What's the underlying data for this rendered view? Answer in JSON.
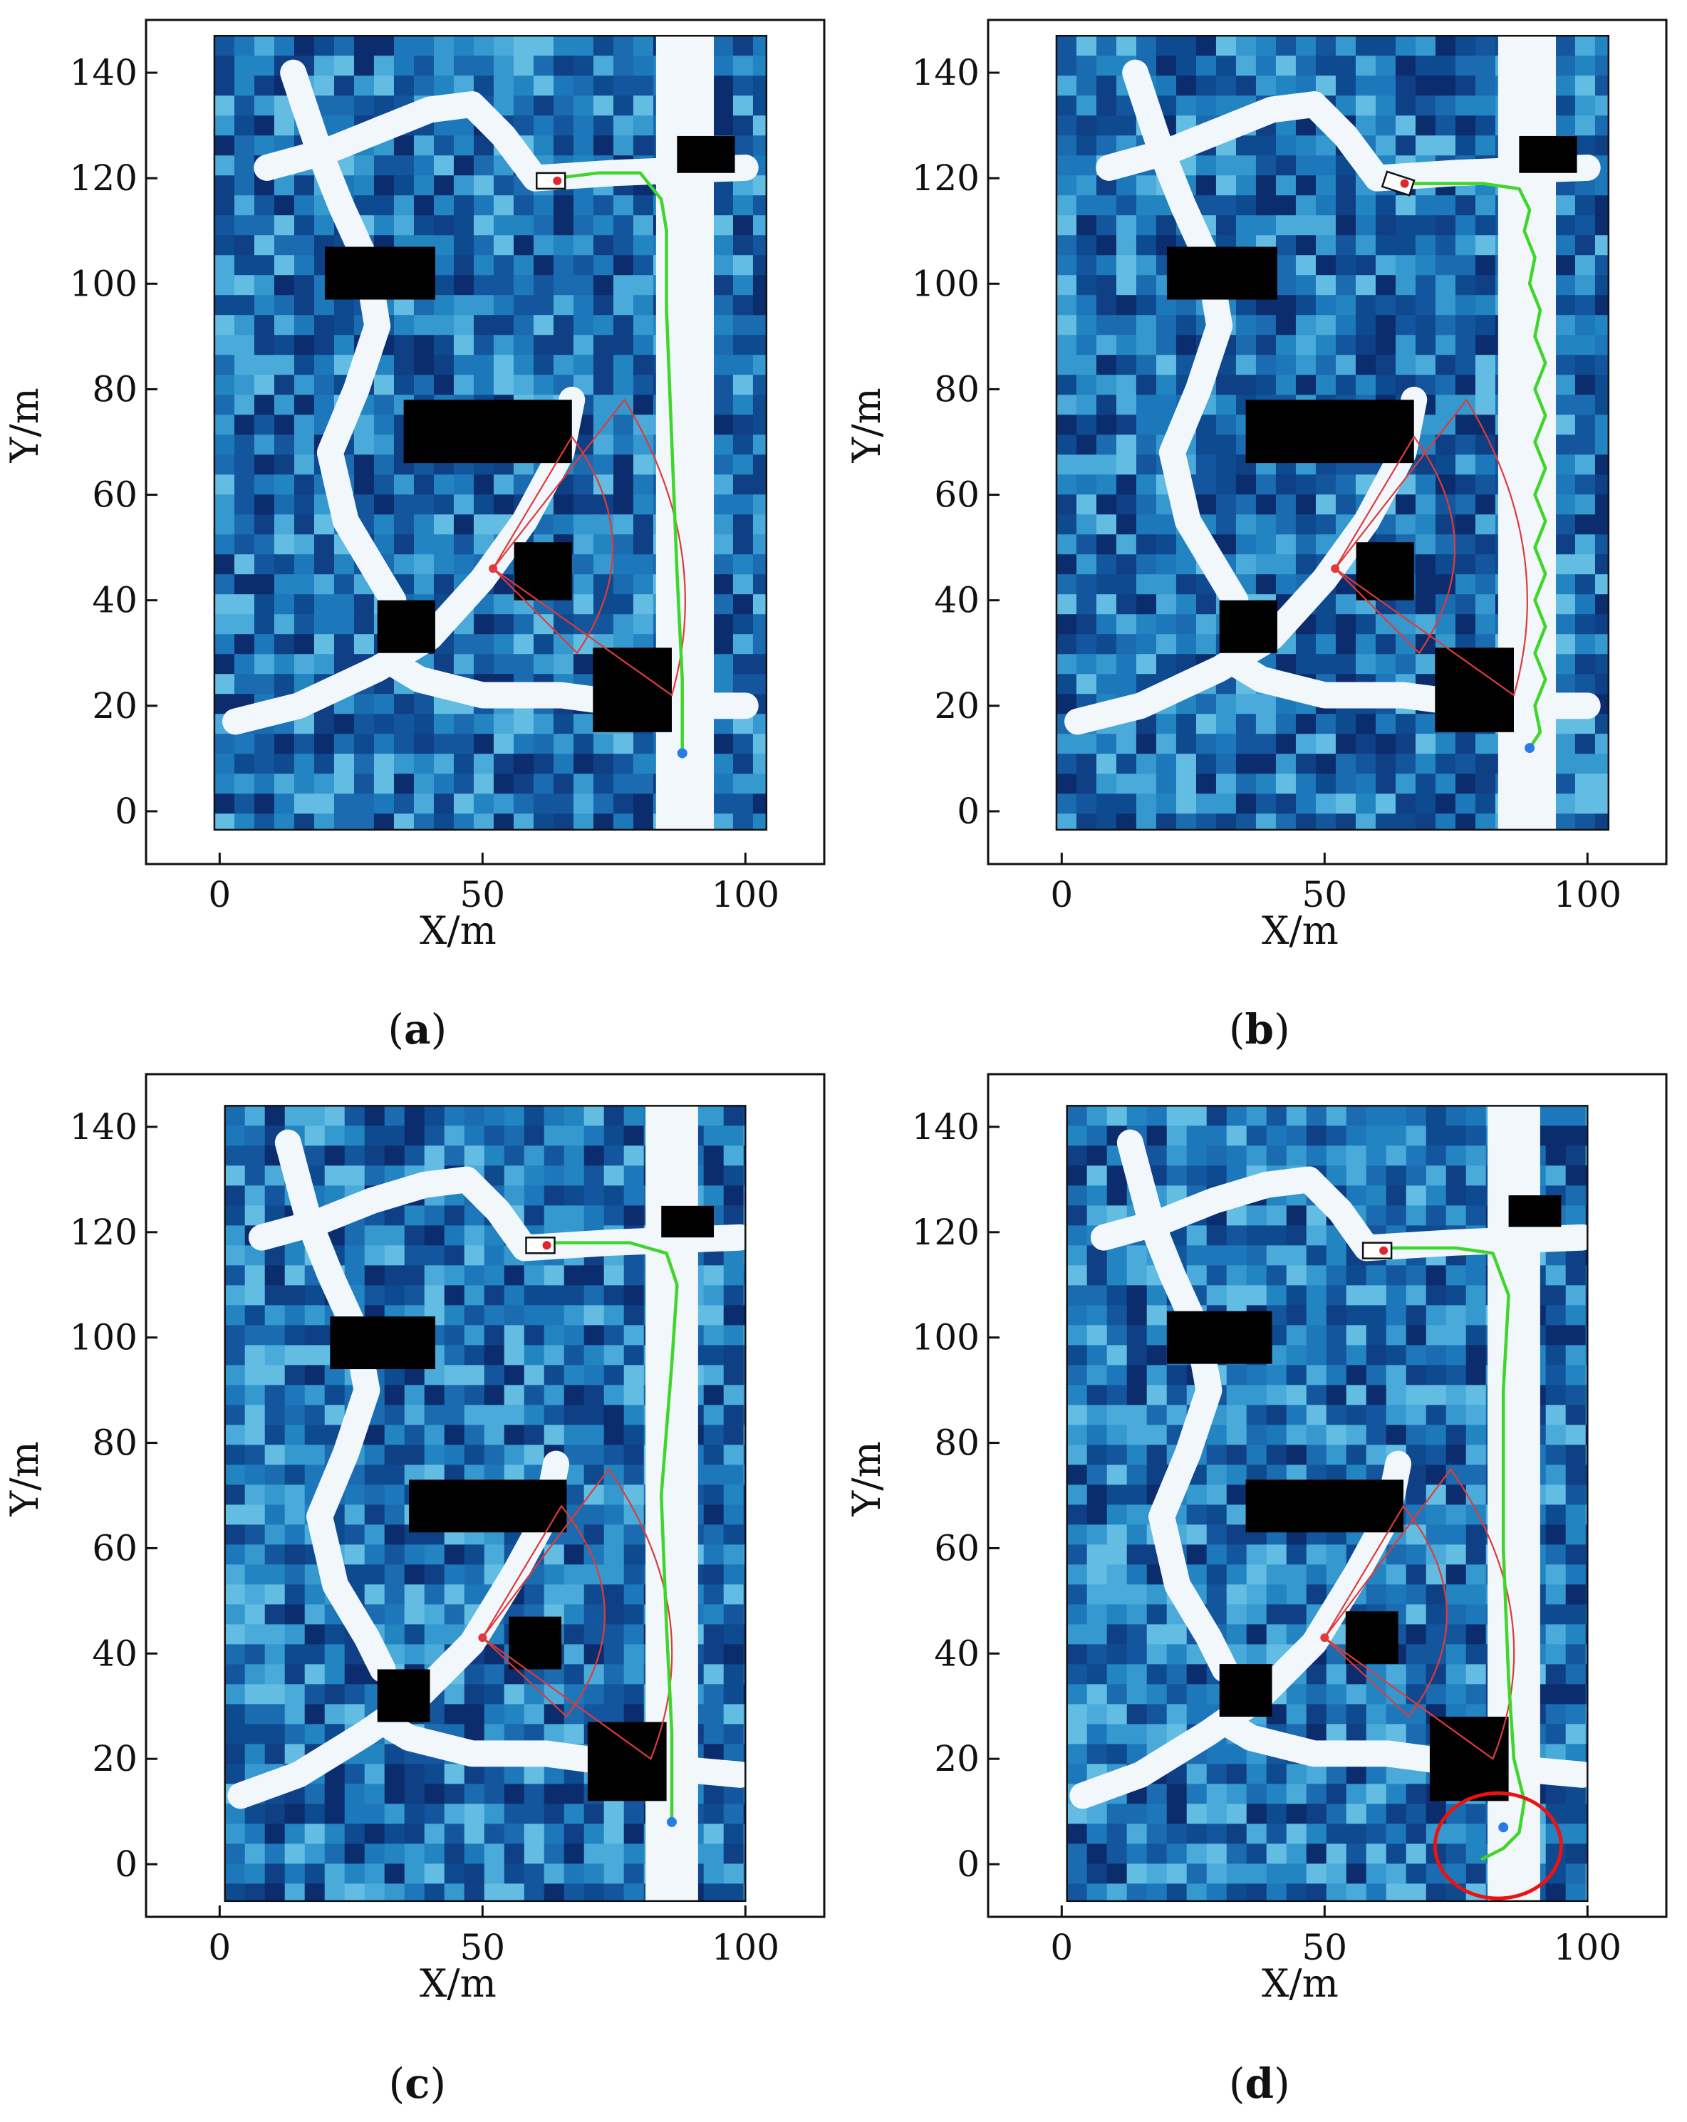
{
  "figure": {
    "panels_order": [
      "a",
      "b",
      "c",
      "d"
    ]
  },
  "chart_data": [
    {
      "id": "a",
      "type": "line",
      "caption_letter": "a",
      "caption_paren_open": "(",
      "caption_paren_close": ")",
      "xlabel": "X/m",
      "ylabel": "Y/m",
      "xlim": [
        -14,
        115
      ],
      "ylim": [
        -10,
        150
      ],
      "xticks": [
        0,
        50,
        100
      ],
      "yticks": [
        0,
        20,
        40,
        60,
        80,
        100,
        120,
        140
      ],
      "map_extent": {
        "x": [
          -1,
          104
        ],
        "y": [
          -3.5,
          147
        ]
      },
      "roads": [
        [
          [
            3,
            17
          ],
          [
            15,
            20
          ],
          [
            30,
            27
          ],
          [
            40,
            33
          ],
          [
            50,
            44
          ],
          [
            58,
            55
          ],
          [
            65,
            68
          ],
          [
            67,
            78
          ]
        ],
        [
          [
            33,
            28
          ],
          [
            38,
            25
          ],
          [
            50,
            22
          ],
          [
            65,
            22
          ],
          [
            80,
            20
          ],
          [
            100,
            20
          ]
        ],
        [
          [
            33,
            40
          ],
          [
            30,
            45
          ],
          [
            24,
            55
          ],
          [
            21,
            68
          ],
          [
            26,
            80
          ],
          [
            30,
            92
          ],
          [
            28,
            104
          ],
          [
            23,
            115
          ],
          [
            19,
            125
          ],
          [
            14,
            140
          ]
        ],
        [
          [
            9,
            122
          ],
          [
            20,
            125
          ],
          [
            30,
            129
          ],
          [
            40,
            133
          ],
          [
            48,
            134
          ],
          [
            54,
            128
          ],
          [
            60,
            120
          ],
          [
            75,
            121
          ],
          [
            100,
            122
          ]
        ]
      ],
      "white_strip": {
        "x": [
          83,
          94
        ],
        "y": [
          -3.5,
          147
        ]
      },
      "obstacles": [
        {
          "x": [
            20,
            41
          ],
          "y": [
            97,
            107
          ]
        },
        {
          "x": [
            35,
            67
          ],
          "y": [
            66,
            78
          ]
        },
        {
          "x": [
            56,
            67
          ],
          "y": [
            40,
            51
          ]
        },
        {
          "x": [
            30,
            41
          ],
          "y": [
            30,
            40
          ]
        },
        {
          "x": [
            71,
            86
          ],
          "y": [
            15,
            31
          ]
        },
        {
          "x": [
            87,
            98
          ],
          "y": [
            121,
            128
          ]
        }
      ],
      "sensor": {
        "origin": [
          52,
          46
        ],
        "left_end": [
          67,
          71
        ],
        "right_end": [
          68,
          30
        ],
        "outer_tip": [
          77,
          78
        ],
        "outer_bottom": [
          86,
          22
        ],
        "bulge_x": 88
      },
      "path": [
        [
          88,
          11
        ],
        [
          88,
          25
        ],
        [
          87,
          45
        ],
        [
          86,
          70
        ],
        [
          85,
          95
        ],
        [
          85,
          110
        ],
        [
          84,
          116
        ],
        [
          80,
          121
        ],
        [
          72,
          121
        ],
        [
          64,
          120
        ]
      ],
      "start": [
        88,
        11
      ],
      "goal": [
        64,
        120
      ],
      "vehicle": [
        63,
        119.5
      ],
      "highlight": null
    },
    {
      "id": "b",
      "type": "line",
      "caption_letter": "b",
      "caption_paren_open": "(",
      "caption_paren_close": ")",
      "xlabel": "X/m",
      "ylabel": "Y/m",
      "xlim": [
        -14,
        115
      ],
      "ylim": [
        -10,
        150
      ],
      "xticks": [
        0,
        50,
        100
      ],
      "yticks": [
        0,
        20,
        40,
        60,
        80,
        100,
        120,
        140
      ],
      "map_extent": {
        "x": [
          -1,
          104
        ],
        "y": [
          -3.5,
          147
        ]
      },
      "roads": [
        [
          [
            3,
            17
          ],
          [
            15,
            20
          ],
          [
            30,
            27
          ],
          [
            40,
            33
          ],
          [
            50,
            44
          ],
          [
            58,
            55
          ],
          [
            65,
            68
          ],
          [
            67,
            78
          ]
        ],
        [
          [
            33,
            28
          ],
          [
            38,
            25
          ],
          [
            50,
            22
          ],
          [
            65,
            22
          ],
          [
            80,
            20
          ],
          [
            100,
            20
          ]
        ],
        [
          [
            33,
            40
          ],
          [
            30,
            45
          ],
          [
            24,
            55
          ],
          [
            21,
            68
          ],
          [
            26,
            80
          ],
          [
            30,
            92
          ],
          [
            28,
            104
          ],
          [
            23,
            115
          ],
          [
            19,
            125
          ],
          [
            14,
            140
          ]
        ],
        [
          [
            9,
            122
          ],
          [
            20,
            125
          ],
          [
            30,
            129
          ],
          [
            40,
            133
          ],
          [
            48,
            134
          ],
          [
            54,
            128
          ],
          [
            60,
            120
          ],
          [
            75,
            121
          ],
          [
            100,
            122
          ]
        ]
      ],
      "white_strip": {
        "x": [
          83,
          94
        ],
        "y": [
          -3.5,
          147
        ]
      },
      "obstacles": [
        {
          "x": [
            20,
            41
          ],
          "y": [
            97,
            107
          ]
        },
        {
          "x": [
            35,
            67
          ],
          "y": [
            66,
            78
          ]
        },
        {
          "x": [
            56,
            67
          ],
          "y": [
            40,
            51
          ]
        },
        {
          "x": [
            30,
            41
          ],
          "y": [
            30,
            40
          ]
        },
        {
          "x": [
            71,
            86
          ],
          "y": [
            15,
            31
          ]
        },
        {
          "x": [
            87,
            98
          ],
          "y": [
            121,
            128
          ]
        }
      ],
      "sensor": {
        "origin": [
          52,
          46
        ],
        "left_end": [
          67,
          71
        ],
        "right_end": [
          68,
          30
        ],
        "outer_tip": [
          77,
          78
        ],
        "outer_bottom": [
          86,
          22
        ],
        "bulge_x": 88
      },
      "path": [
        [
          89,
          12
        ],
        [
          91,
          15
        ],
        [
          90,
          20
        ],
        [
          92,
          25
        ],
        [
          90,
          30
        ],
        [
          92,
          35
        ],
        [
          90,
          40
        ],
        [
          92,
          45
        ],
        [
          90,
          50
        ],
        [
          92,
          55
        ],
        [
          90,
          60
        ],
        [
          92,
          65
        ],
        [
          90,
          70
        ],
        [
          92,
          75
        ],
        [
          90,
          80
        ],
        [
          92,
          85
        ],
        [
          90,
          90
        ],
        [
          91,
          95
        ],
        [
          89,
          100
        ],
        [
          90,
          105
        ],
        [
          88,
          110
        ],
        [
          89,
          114
        ],
        [
          87,
          118
        ],
        [
          80,
          119
        ],
        [
          72,
          119
        ],
        [
          66,
          119
        ]
      ],
      "start": [
        89,
        12
      ],
      "goal": [
        66,
        119
      ],
      "vehicle": [
        64,
        119
      ],
      "highlight": null
    },
    {
      "id": "c",
      "type": "line",
      "caption_letter": "c",
      "caption_paren_open": "(",
      "caption_paren_close": ")",
      "xlabel": "X/m",
      "ylabel": "Y/m",
      "xlim": [
        -14,
        115
      ],
      "ylim": [
        -10,
        150
      ],
      "xticks": [
        0,
        50,
        100
      ],
      "yticks": [
        0,
        20,
        40,
        60,
        80,
        100,
        120,
        140
      ],
      "map_extent": {
        "x": [
          1,
          100
        ],
        "y": [
          -7,
          144
        ]
      },
      "roads": [
        [
          [
            4,
            13
          ],
          [
            15,
            17
          ],
          [
            28,
            25
          ],
          [
            38,
            32
          ],
          [
            48,
            42
          ],
          [
            56,
            55
          ],
          [
            62,
            66
          ],
          [
            64,
            76
          ]
        ],
        [
          [
            31,
            27
          ],
          [
            36,
            24
          ],
          [
            48,
            21
          ],
          [
            62,
            21
          ],
          [
            77,
            19
          ],
          [
            99,
            17
          ]
        ],
        [
          [
            31,
            37
          ],
          [
            28,
            43
          ],
          [
            22,
            53
          ],
          [
            19,
            66
          ],
          [
            24,
            78
          ],
          [
            28,
            90
          ],
          [
            26,
            101
          ],
          [
            21,
            112
          ],
          [
            17,
            122
          ],
          [
            13,
            137
          ]
        ],
        [
          [
            8,
            119
          ],
          [
            19,
            122
          ],
          [
            29,
            126
          ],
          [
            39,
            129
          ],
          [
            47,
            130
          ],
          [
            53,
            124
          ],
          [
            58,
            117
          ],
          [
            74,
            118
          ],
          [
            99,
            119
          ]
        ]
      ],
      "white_strip": {
        "x": [
          81,
          91
        ],
        "y": [
          -7,
          144
        ]
      },
      "obstacles": [
        {
          "x": [
            21,
            41
          ],
          "y": [
            94,
            104
          ]
        },
        {
          "x": [
            36,
            66
          ],
          "y": [
            63,
            73
          ]
        },
        {
          "x": [
            55,
            65
          ],
          "y": [
            37,
            47
          ]
        },
        {
          "x": [
            30,
            40
          ],
          "y": [
            27,
            37
          ]
        },
        {
          "x": [
            70,
            85
          ],
          "y": [
            12,
            27
          ]
        },
        {
          "x": [
            84,
            94
          ],
          "y": [
            119,
            125
          ]
        }
      ],
      "sensor": {
        "origin": [
          50,
          43
        ],
        "left_end": [
          65,
          68
        ],
        "right_end": [
          66,
          28
        ],
        "outer_tip": [
          74,
          75
        ],
        "outer_bottom": [
          82,
          20
        ],
        "bulge_x": 87
      },
      "path": [
        [
          86,
          8
        ],
        [
          86,
          25
        ],
        [
          85,
          45
        ],
        [
          84,
          70
        ],
        [
          86,
          95
        ],
        [
          87,
          110
        ],
        [
          85,
          116
        ],
        [
          78,
          118
        ],
        [
          70,
          118
        ],
        [
          63,
          118
        ]
      ],
      "start": [
        86,
        8
      ],
      "goal": [
        63,
        118
      ],
      "vehicle": [
        61,
        117.5
      ],
      "highlight": null
    },
    {
      "id": "d",
      "type": "line",
      "caption_letter": "d",
      "caption_paren_open": "(",
      "caption_paren_close": ")",
      "xlabel": "X/m",
      "ylabel": "Y/m",
      "xlim": [
        -14,
        115
      ],
      "ylim": [
        -10,
        150
      ],
      "xticks": [
        0,
        50,
        100
      ],
      "yticks": [
        0,
        20,
        40,
        60,
        80,
        100,
        120,
        140
      ],
      "map_extent": {
        "x": [
          1,
          100
        ],
        "y": [
          -7,
          144
        ]
      },
      "roads": [
        [
          [
            4,
            13
          ],
          [
            15,
            17
          ],
          [
            28,
            25
          ],
          [
            38,
            32
          ],
          [
            48,
            42
          ],
          [
            56,
            55
          ],
          [
            62,
            66
          ],
          [
            64,
            76
          ]
        ],
        [
          [
            31,
            27
          ],
          [
            36,
            24
          ],
          [
            48,
            21
          ],
          [
            62,
            21
          ],
          [
            77,
            19
          ],
          [
            99,
            17
          ]
        ],
        [
          [
            31,
            37
          ],
          [
            28,
            43
          ],
          [
            22,
            53
          ],
          [
            19,
            66
          ],
          [
            24,
            78
          ],
          [
            28,
            90
          ],
          [
            26,
            101
          ],
          [
            21,
            112
          ],
          [
            17,
            122
          ],
          [
            13,
            137
          ]
        ],
        [
          [
            8,
            119
          ],
          [
            19,
            122
          ],
          [
            29,
            126
          ],
          [
            39,
            129
          ],
          [
            47,
            130
          ],
          [
            53,
            124
          ],
          [
            58,
            117
          ],
          [
            74,
            118
          ],
          [
            99,
            119
          ]
        ]
      ],
      "white_strip": {
        "x": [
          81,
          91
        ],
        "y": [
          -7,
          144
        ]
      },
      "obstacles": [
        {
          "x": [
            20,
            40
          ],
          "y": [
            95,
            105
          ]
        },
        {
          "x": [
            35,
            65
          ],
          "y": [
            63,
            73
          ]
        },
        {
          "x": [
            54,
            64
          ],
          "y": [
            38,
            48
          ]
        },
        {
          "x": [
            30,
            40
          ],
          "y": [
            28,
            38
          ]
        },
        {
          "x": [
            70,
            85
          ],
          "y": [
            12,
            28
          ]
        },
        {
          "x": [
            85,
            95
          ],
          "y": [
            121,
            127
          ]
        }
      ],
      "sensor": {
        "origin": [
          50,
          43
        ],
        "left_end": [
          65,
          68
        ],
        "right_end": [
          66,
          28
        ],
        "outer_tip": [
          74,
          75
        ],
        "outer_bottom": [
          82,
          20
        ],
        "bulge_x": 87
      },
      "path": [
        [
          80,
          1
        ],
        [
          84,
          3
        ],
        [
          87,
          6
        ],
        [
          88,
          12
        ],
        [
          86,
          20
        ],
        [
          85,
          35
        ],
        [
          84,
          60
        ],
        [
          84,
          90
        ],
        [
          85,
          108
        ],
        [
          82,
          116
        ],
        [
          75,
          117
        ],
        [
          65,
          117
        ],
        [
          61,
          117
        ]
      ],
      "start": [
        84,
        7
      ],
      "goal": [
        61,
        117
      ],
      "vehicle": [
        60,
        116.5
      ],
      "highlight": {
        "cx": 83,
        "cy": 3.5,
        "rx": 12,
        "ry": 10
      }
    }
  ]
}
